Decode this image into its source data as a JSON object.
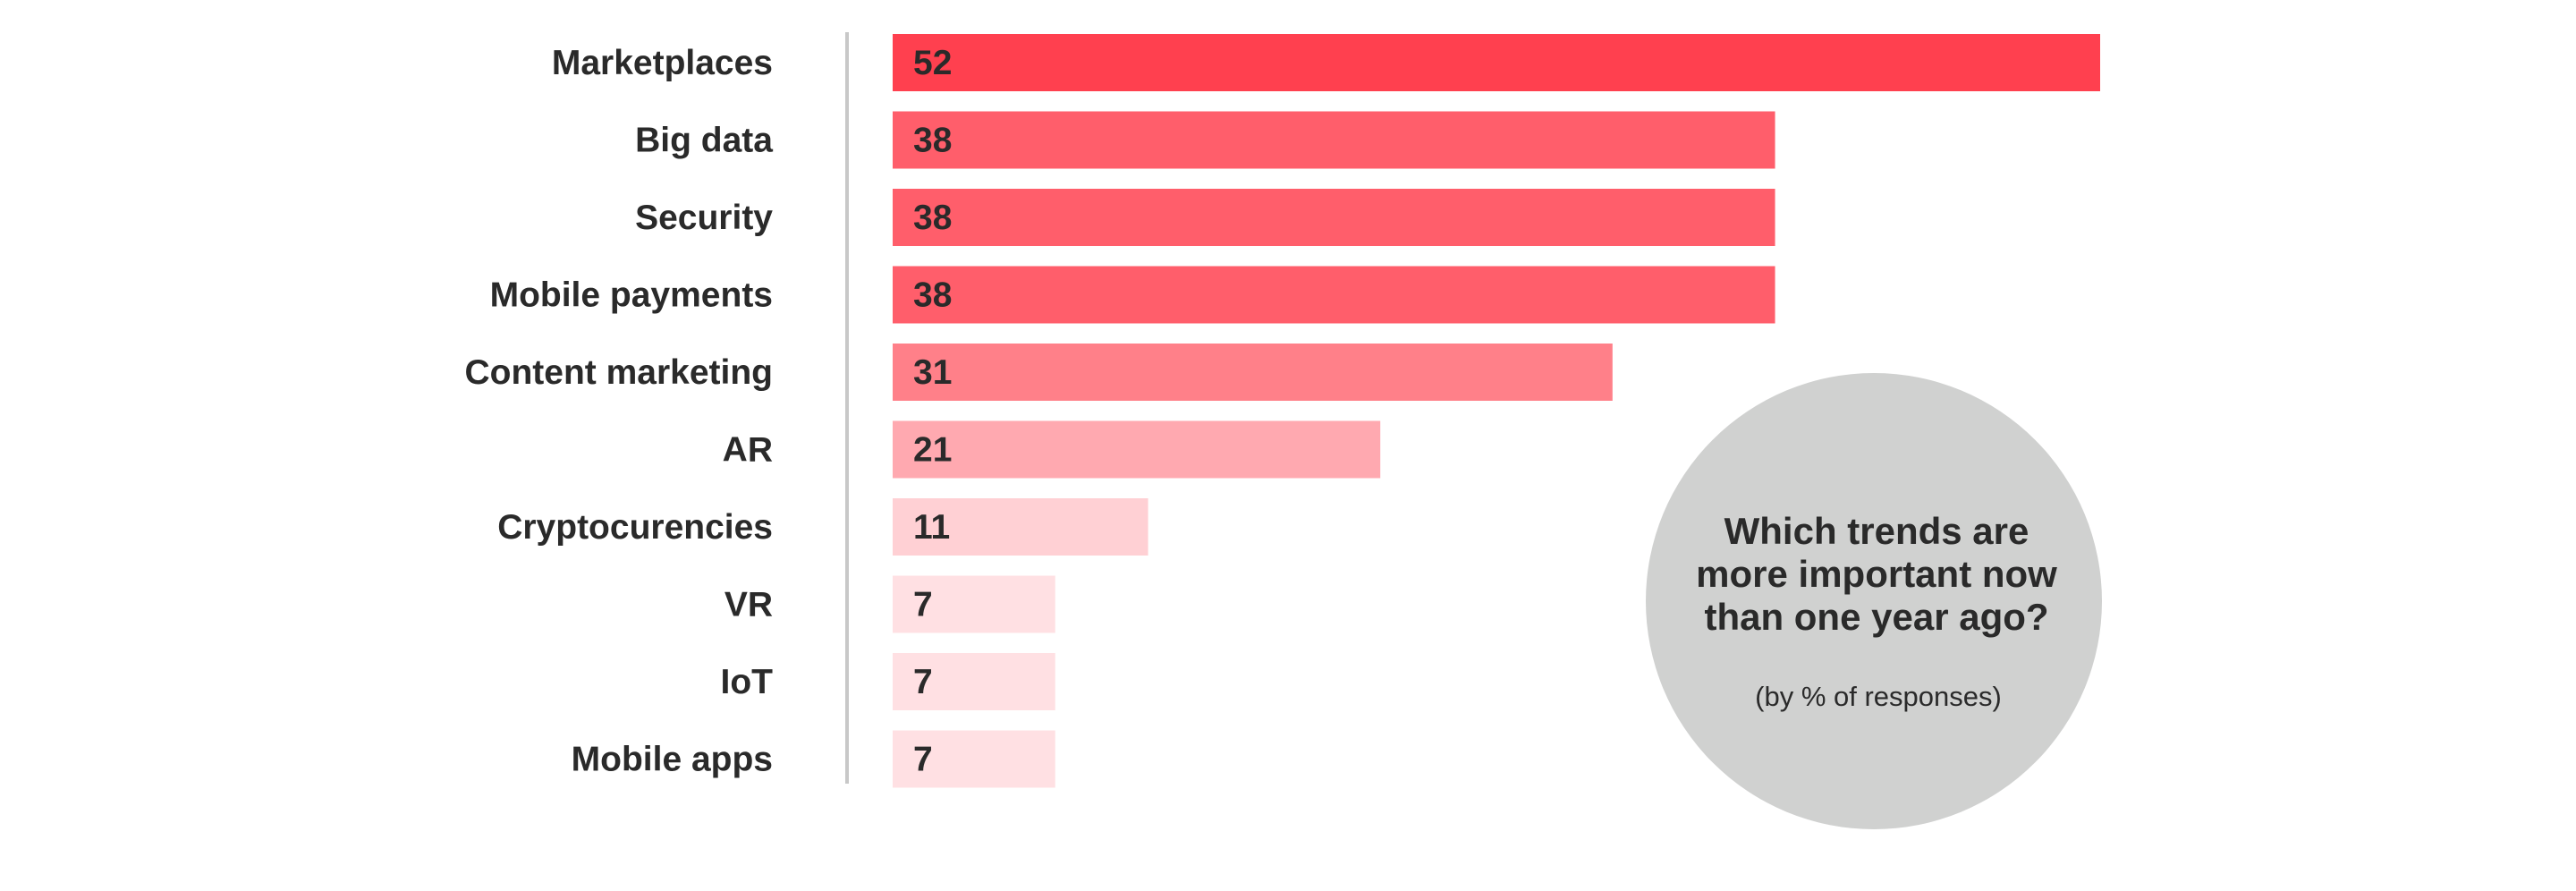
{
  "chart_data": {
    "type": "bar",
    "orientation": "horizontal",
    "categories": [
      "Marketplaces",
      "Big data",
      "Security",
      "Mobile payments",
      "Content marketing",
      "AR",
      "Cryptocurencies",
      "VR",
      "IoT",
      "Mobile apps"
    ],
    "values": [
      52,
      38,
      38,
      38,
      31,
      21,
      11,
      7,
      7,
      7
    ],
    "bar_colors": [
      "#ff404f",
      "#ff5e6b",
      "#ff5e6b",
      "#ff5e6b",
      "#ff8089",
      "#ffa9b0",
      "#ffd0d4",
      "#ffe0e3",
      "#ffe0e3",
      "#ffe0e3"
    ],
    "title_lines": [
      "Which trends are",
      "more important now",
      "than one year ago?"
    ],
    "subtitle": "(by % of responses)",
    "xlim": [
      0,
      52
    ],
    "grid": false,
    "legend": "none"
  },
  "colors": {
    "axis": "#c8c8c8",
    "bubble": "#d0d1d0",
    "text": "#2a2a2a"
  }
}
